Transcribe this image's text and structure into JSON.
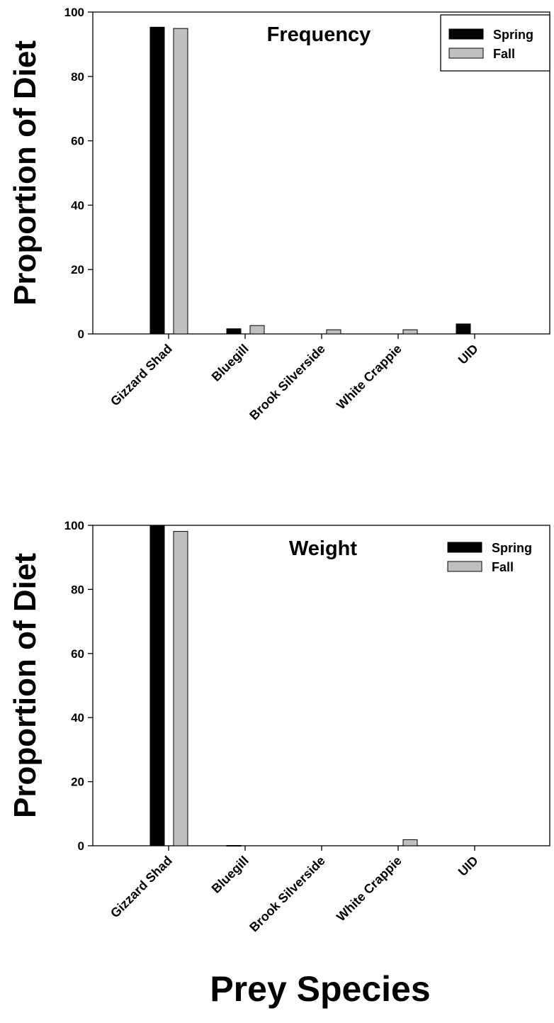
{
  "figure": {
    "xlabel": "Prey Species"
  },
  "chart_data": [
    {
      "type": "bar",
      "title": "Frequency",
      "ylabel": "Proportion of Diet",
      "xlabel": "",
      "ylim": [
        0,
        100
      ],
      "yticks": [
        0,
        20,
        40,
        60,
        80,
        100
      ],
      "categories": [
        "Gizzard Shad",
        "Bluegill",
        "Brook Silverside",
        "White Crappie",
        "UID"
      ],
      "series": [
        {
          "name": "Spring",
          "color": "#000000",
          "values": [
            95.3,
            1.6,
            0,
            0,
            3.1
          ]
        },
        {
          "name": "Fall",
          "color": "#c0c0c0",
          "values": [
            94.9,
            2.6,
            1.3,
            1.3,
            0
          ]
        }
      ],
      "legend": "top-right",
      "legend_boxed": true,
      "grid": false
    },
    {
      "type": "bar",
      "title": "Weight",
      "ylabel": "Proportion of Diet",
      "xlabel": "",
      "ylim": [
        0,
        100
      ],
      "yticks": [
        0,
        20,
        40,
        60,
        80,
        100
      ],
      "categories": [
        "Gizzard Shad",
        "Bluegill",
        "Brook Silverside",
        "White Crappie",
        "UID"
      ],
      "series": [
        {
          "name": "Spring",
          "color": "#000000",
          "values": [
            99.9,
            0.1,
            0,
            0,
            0
          ]
        },
        {
          "name": "Fall",
          "color": "#c0c0c0",
          "values": [
            98.1,
            0,
            0,
            1.9,
            0
          ]
        }
      ],
      "legend": "top-right",
      "legend_boxed": false,
      "grid": false
    }
  ]
}
